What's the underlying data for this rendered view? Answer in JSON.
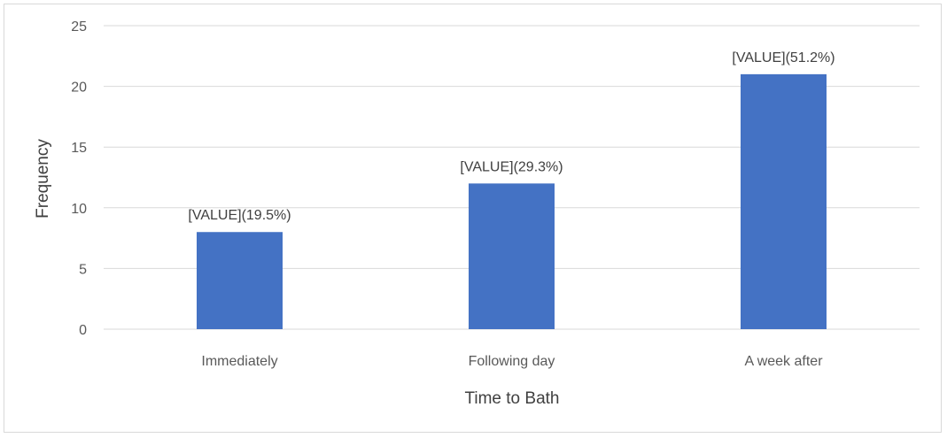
{
  "chart_data": {
    "type": "bar",
    "title": "",
    "xlabel": "Time to Bath",
    "ylabel": "Frequency",
    "categories": [
      "Immediately",
      "Following day",
      "A week after"
    ],
    "values": [
      8,
      12,
      21
    ],
    "data_labels": [
      "[VALUE](19.5%)",
      "[VALUE](29.3%)",
      "[VALUE](51.2%)"
    ],
    "ylim": [
      0,
      25
    ],
    "yticks": [
      0,
      5,
      10,
      15,
      20,
      25
    ],
    "grid": true,
    "legend": "none",
    "bar_color": "#4472C4"
  }
}
